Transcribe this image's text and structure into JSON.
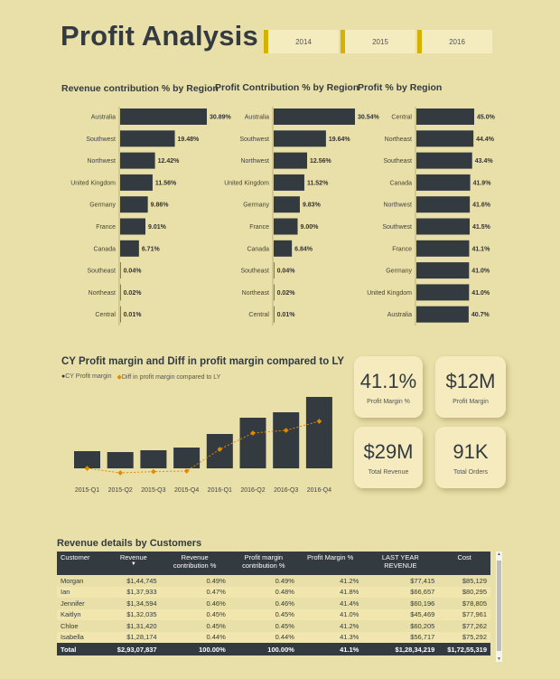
{
  "page": {
    "title": "Profit Analysis"
  },
  "year_filter": [
    "2014",
    "2015",
    "2016"
  ],
  "colors": {
    "bar": "#333a40",
    "line": "#e08a00",
    "background": "#e8dfa9",
    "slicer_accent": "#d6b100"
  },
  "chart_data": [
    {
      "type": "bar",
      "orientation": "horizontal",
      "title": "Revenue contribution % by Region",
      "categories": [
        "Australia",
        "Southwest",
        "Northwest",
        "United Kingdom",
        "Germany",
        "France",
        "Canada",
        "Southeast",
        "Northeast",
        "Central"
      ],
      "values": [
        30.89,
        19.48,
        12.42,
        11.56,
        9.86,
        9.01,
        6.71,
        0.04,
        0.02,
        0.01
      ],
      "labels": [
        "30.89%",
        "19.48%",
        "12.42%",
        "11.56%",
        "9.86%",
        "9.01%",
        "6.71%",
        "0.04%",
        "0.02%",
        "0.01%"
      ],
      "xlim": [
        0,
        30.89
      ]
    },
    {
      "type": "bar",
      "orientation": "horizontal",
      "title": "Profit Contribution % by Region",
      "categories": [
        "Australia",
        "Southwest",
        "Northwest",
        "United Kingdom",
        "Germany",
        "France",
        "Canada",
        "Southeast",
        "Northeast",
        "Central"
      ],
      "values": [
        30.54,
        19.64,
        12.56,
        11.52,
        9.83,
        9.0,
        6.84,
        0.04,
        0.02,
        0.01
      ],
      "labels": [
        "30.54%",
        "19.64%",
        "12.56%",
        "11.52%",
        "9.83%",
        "9.00%",
        "6.84%",
        "0.04%",
        "0.02%",
        "0.01%"
      ],
      "xlim": [
        0,
        30.54
      ]
    },
    {
      "type": "bar",
      "orientation": "horizontal",
      "title": "Profit % by Region",
      "categories": [
        "Central",
        "Northeast",
        "Southeast",
        "Canada",
        "Northwest",
        "Southwest",
        "France",
        "Germany",
        "United Kingdom",
        "Australia"
      ],
      "values": [
        45.0,
        44.4,
        43.4,
        41.9,
        41.6,
        41.5,
        41.1,
        41.0,
        41.0,
        40.7
      ],
      "labels": [
        "45.0%",
        "44.4%",
        "43.4%",
        "41.9%",
        "41.6%",
        "41.5%",
        "41.1%",
        "41.0%",
        "41.0%",
        "40.7%"
      ],
      "xlim": [
        0,
        45.0
      ]
    },
    {
      "type": "bar+line",
      "title": "CY Profit margin and Diff in profit margin compared to LY",
      "categories": [
        "2015-Q1",
        "2015-Q2",
        "2015-Q3",
        "2015-Q4",
        "2016-Q1",
        "2016-Q2",
        "2016-Q3",
        "2016-Q4"
      ],
      "series": [
        {
          "name": "CY Profit margin",
          "type": "bar",
          "values": [
            0.95,
            0.9,
            1.0,
            1.15,
            1.9,
            2.8,
            3.1,
            3.95
          ]
        },
        {
          "name": "Diff in profit margin compared to LY",
          "type": "line",
          "values": [
            0.0,
            -0.25,
            -0.18,
            -0.15,
            1.05,
            1.95,
            2.1,
            2.6
          ]
        }
      ],
      "ylim": [
        -0.5,
        4.3
      ]
    }
  ],
  "cards": [
    {
      "value": "41.1%",
      "label": "Profit Margin %"
    },
    {
      "value": "$12M",
      "label": "Profit Margin"
    },
    {
      "value": "$29M",
      "label": "Total Revenue"
    },
    {
      "value": "91K",
      "label": "Total Orders"
    }
  ],
  "table": {
    "title": "Revenue details by Customers",
    "columns": [
      "Customer",
      "Revenue",
      "Revenue contribution %",
      "Profit margin contribution %",
      "Profit Margin %",
      "LAST YEAR REVENUE",
      "Cost"
    ],
    "rows": [
      [
        "Morgan",
        "$1,44,745",
        "0.49%",
        "0.49%",
        "41.2%",
        "$77,415",
        "$85,129"
      ],
      [
        "Ian",
        "$1,37,933",
        "0.47%",
        "0.48%",
        "41.8%",
        "$66,657",
        "$80,295"
      ],
      [
        "Jennifer",
        "$1,34,594",
        "0.46%",
        "0.46%",
        "41.4%",
        "$60,196",
        "$78,805"
      ],
      [
        "Kaitlyn",
        "$1,32,035",
        "0.45%",
        "0.45%",
        "41.0%",
        "$45,469",
        "$77,961"
      ],
      [
        "Chloe",
        "$1,31,420",
        "0.45%",
        "0.45%",
        "41.2%",
        "$60,205",
        "$77,262"
      ],
      [
        "Isabella",
        "$1,28,174",
        "0.44%",
        "0.44%",
        "41.3%",
        "$56,717",
        "$75,292"
      ]
    ],
    "total": [
      "Total",
      "$2,93,07,837",
      "100.00%",
      "100.00%",
      "41.1%",
      "$1,28,34,219",
      "$1,72,55,319"
    ]
  }
}
